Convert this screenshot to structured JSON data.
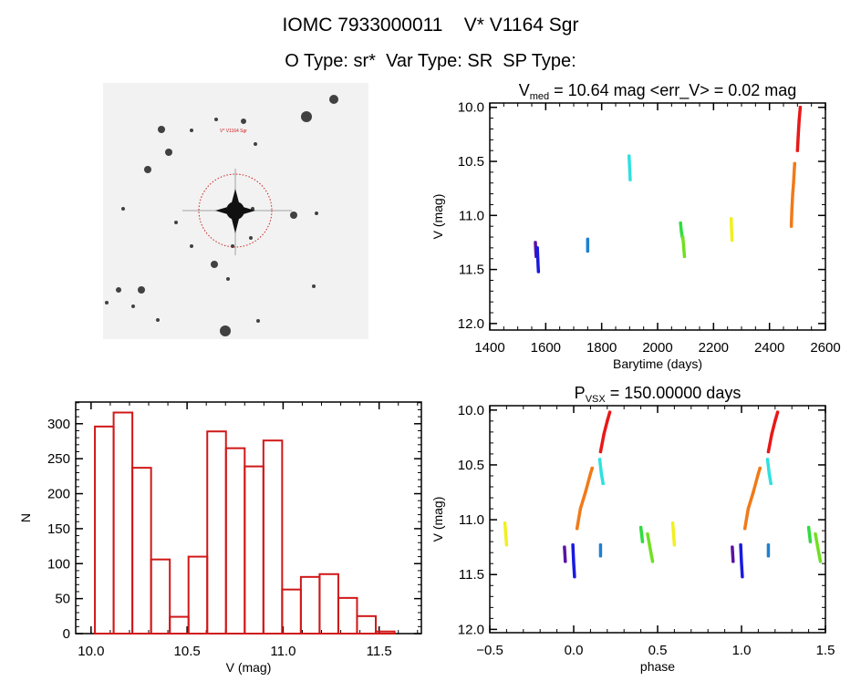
{
  "header": {
    "title": "IOMC 7933000011    V* V1164 Sgr",
    "subtitle": "O Type: sr*  Var Type: SR  SP Type:"
  },
  "image": {
    "target_label": "V* V1164 Sgr",
    "circle_color": "#cc2020"
  },
  "chart_data": [
    {
      "id": "light-curve",
      "type": "scatter",
      "title_main": "V",
      "title_sub": "med",
      "title_rest": " = 10.64 mag <err_V> = 0.02 mag",
      "xlabel": "Barytime (days)",
      "ylabel": "V (mag)",
      "xlim": [
        1400,
        2600
      ],
      "ylim": [
        9.96,
        12.06
      ],
      "y_inverted": true,
      "xticks": [
        1400,
        1600,
        1800,
        2000,
        2200,
        2400,
        2600
      ],
      "xtick_labels": [
        "1400",
        "1600",
        "1800",
        "2000",
        "2200",
        "2400",
        "2600"
      ],
      "xminor": 50,
      "yticks": [
        10.0,
        10.5,
        11.0,
        11.5,
        12.0
      ],
      "ytick_labels": [
        "10.0",
        "10.5",
        "11.0",
        "11.5",
        "12.0"
      ],
      "yminor": 0.1,
      "grid": false,
      "clusters": [
        {
          "color": "#5a12a0",
          "points": [
            [
              1563,
              11.25
            ],
            [
              1564,
              11.3
            ],
            [
              1565,
              11.35
            ],
            [
              1566,
              11.38
            ]
          ]
        },
        {
          "color": "#1a1ae0",
          "points": [
            [
              1570,
              11.3
            ],
            [
              1571,
              11.36
            ],
            [
              1572,
              11.42
            ],
            [
              1573,
              11.48
            ],
            [
              1574,
              11.52
            ]
          ]
        },
        {
          "color": "#2080d0",
          "points": [
            [
              1750,
              11.22
            ],
            [
              1750,
              11.27
            ],
            [
              1750,
              11.33
            ]
          ]
        },
        {
          "color": "#30e0e0",
          "points": [
            [
              1898,
              10.45
            ],
            [
              1899,
              10.5
            ],
            [
              1900,
              10.56
            ],
            [
              1901,
              10.62
            ],
            [
              1902,
              10.67
            ]
          ]
        },
        {
          "color": "#30dc40",
          "points": [
            [
              2082,
              11.07
            ],
            [
              2085,
              11.15
            ],
            [
              2088,
              11.2
            ]
          ]
        },
        {
          "color": "#70e020",
          "points": [
            [
              2090,
              11.2
            ],
            [
              2093,
              11.28
            ],
            [
              2096,
              11.38
            ]
          ]
        },
        {
          "color": "#f0f020",
          "points": [
            [
              2263,
              11.03
            ],
            [
              2264,
              11.1
            ],
            [
              2265,
              11.17
            ],
            [
              2266,
              11.23
            ]
          ]
        },
        {
          "color": "#f07a18",
          "points": [
            [
              2478,
              11.1
            ],
            [
              2480,
              10.95
            ],
            [
              2483,
              10.8
            ],
            [
              2486,
              10.7
            ],
            [
              2490,
              10.52
            ]
          ]
        },
        {
          "color": "#e81818",
          "points": [
            [
              2500,
              10.4
            ],
            [
              2503,
              10.25
            ],
            [
              2506,
              10.12
            ],
            [
              2510,
              10.0
            ]
          ]
        }
      ]
    },
    {
      "id": "histogram",
      "type": "bar",
      "xlabel": "V (mag)",
      "ylabel": "N",
      "xlim": [
        9.92,
        11.72
      ],
      "ylim": [
        0,
        331
      ],
      "bin_start": 10.02,
      "bin_width": 0.0975,
      "values": [
        296,
        316,
        237,
        106,
        24,
        110,
        289,
        265,
        239,
        276,
        63,
        81,
        85,
        51,
        25,
        3
      ],
      "bar_color": "#d01818",
      "xticks": [
        10.0,
        10.5,
        11.0,
        11.5
      ],
      "xtick_labels": [
        "10.0",
        "10.5",
        "11.0",
        "11.5"
      ],
      "xminor": 0.1,
      "yticks": [
        0,
        50,
        100,
        150,
        200,
        250,
        300
      ],
      "ytick_labels": [
        "0",
        "50",
        "100",
        "150",
        "200",
        "250",
        "300"
      ],
      "yminor": 10,
      "grid": false
    },
    {
      "id": "phase-curve",
      "type": "scatter",
      "title_main": "P",
      "title_sub": "VSX",
      "title_rest": " = 150.00000 days",
      "xlabel": "phase",
      "ylabel": "V (mag)",
      "xlim": [
        -0.5,
        1.5
      ],
      "ylim": [
        9.96,
        12.03
      ],
      "y_inverted": true,
      "repeat_offset": 1,
      "xticks": [
        -0.5,
        0.0,
        0.5,
        1.0,
        1.5
      ],
      "xtick_labels": [
        "−0.5",
        "0.0",
        "0.5",
        "1.0",
        "1.5"
      ],
      "xminor": 0.1,
      "yticks": [
        10.0,
        10.5,
        11.0,
        11.5,
        12.0
      ],
      "ytick_labels": [
        "10.0",
        "10.5",
        "11.0",
        "11.5",
        "12.0"
      ],
      "yminor": 0.1,
      "grid": false,
      "clusters": [
        {
          "color": "#5a12a0",
          "points": [
            [
              -0.055,
              11.25
            ],
            [
              -0.05,
              11.38
            ]
          ]
        },
        {
          "color": "#1a1ae0",
          "points": [
            [
              -0.005,
              11.23
            ],
            [
              0.0,
              11.4
            ],
            [
              0.005,
              11.52
            ]
          ]
        },
        {
          "color": "#2080d0",
          "points": [
            [
              0.16,
              11.23
            ],
            [
              0.16,
              11.33
            ]
          ]
        },
        {
          "color": "#30e0e0",
          "points": [
            [
              0.155,
              10.45
            ],
            [
              0.165,
              10.58
            ],
            [
              0.175,
              10.67
            ]
          ]
        },
        {
          "color": "#30dc40",
          "points": [
            [
              0.4,
              11.07
            ],
            [
              0.41,
              11.2
            ]
          ]
        },
        {
          "color": "#70e020",
          "points": [
            [
              0.44,
              11.13
            ],
            [
              0.46,
              11.3
            ],
            [
              0.47,
              11.38
            ]
          ]
        },
        {
          "color": "#f0f020",
          "points": [
            [
              -0.41,
              11.03
            ],
            [
              -0.4,
              11.23
            ]
          ]
        },
        {
          "color": "#f07a18",
          "points": [
            [
              0.02,
              11.08
            ],
            [
              0.04,
              10.9
            ],
            [
              0.07,
              10.75
            ],
            [
              0.1,
              10.58
            ],
            [
              0.11,
              10.53
            ]
          ]
        },
        {
          "color": "#e81818",
          "points": [
            [
              0.16,
              10.38
            ],
            [
              0.18,
              10.22
            ],
            [
              0.2,
              10.1
            ],
            [
              0.215,
              10.02
            ]
          ]
        }
      ]
    }
  ]
}
